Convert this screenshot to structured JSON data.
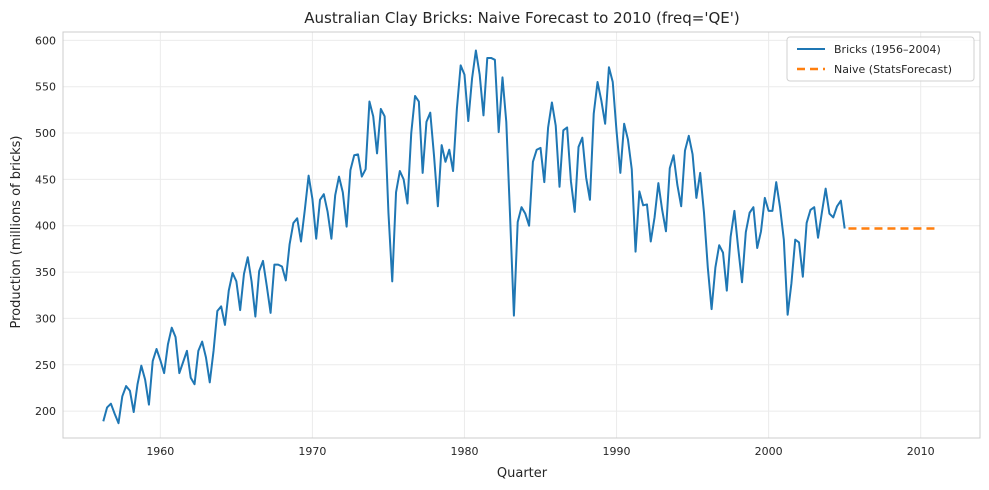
{
  "chart_data": {
    "type": "line",
    "title": "Australian Clay Bricks: Naive Forecast to 2010 (freq='QE')",
    "xlabel": "Quarter",
    "ylabel": "Production (millions of bricks)",
    "xlim": [
      1953.6,
      2013.9
    ],
    "ylim": [
      171,
      609
    ],
    "x_ticks": [
      1960,
      1970,
      1980,
      1990,
      2000,
      2010
    ],
    "y_ticks": [
      200,
      250,
      300,
      350,
      400,
      450,
      500,
      550,
      600
    ],
    "grid": true,
    "legend_position": "top-right",
    "colors": {
      "history": "#1f77b4",
      "forecast": "#ff7f0e"
    },
    "series": [
      {
        "name": "Bricks (1956–2004)",
        "style": "solid",
        "x_start": 1956.25,
        "x_step": 0.25,
        "values": [
          189,
          204,
          208,
          197,
          187,
          216,
          227,
          222,
          199,
          229,
          249,
          234,
          207,
          254,
          267,
          255,
          241,
          272,
          290,
          280,
          241,
          253,
          265,
          236,
          229,
          265,
          275,
          258,
          231,
          265,
          308,
          313,
          293,
          330,
          349,
          340,
          309,
          348,
          366,
          340,
          302,
          351,
          362,
          335,
          306,
          358,
          358,
          356,
          341,
          380,
          403,
          408,
          383,
          417,
          454,
          429,
          386,
          428,
          434,
          415,
          386,
          433,
          453,
          436,
          399,
          460,
          476,
          477,
          453,
          461,
          534,
          518,
          478,
          526,
          518,
          414,
          340,
          436,
          459,
          450,
          424,
          500,
          540,
          534,
          457,
          512,
          522,
          475,
          421,
          487,
          469,
          482,
          459,
          526,
          573,
          563,
          513,
          559,
          589,
          563,
          519,
          581,
          581,
          579,
          501,
          560,
          512,
          410,
          303,
          404,
          420,
          413,
          400,
          469,
          482,
          484,
          447,
          506,
          533,
          508,
          442,
          503,
          506,
          448,
          415,
          485,
          495,
          452,
          428,
          521,
          555,
          535,
          510,
          571,
          555,
          502,
          457,
          510,
          493,
          461,
          372,
          437,
          422,
          423,
          383,
          409,
          446,
          417,
          394,
          462,
          476,
          444,
          421,
          481,
          497,
          477,
          430,
          457,
          414,
          355,
          310,
          355,
          379,
          371,
          330,
          388,
          416,
          376,
          339,
          393,
          414,
          420,
          376,
          394,
          430,
          416,
          416,
          447,
          420,
          385,
          304,
          338,
          385,
          382,
          345,
          403,
          417,
          420,
          387,
          414,
          440,
          413,
          409,
          421,
          427,
          397
        ]
      },
      {
        "name": "Naive (StatsForecast)",
        "style": "dashed",
        "x_start": 2005.25,
        "x_step": 0.25,
        "values": [
          397,
          397,
          397,
          397,
          397,
          397,
          397,
          397,
          397,
          397,
          397,
          397,
          397,
          397,
          397,
          397,
          397,
          397,
          397,
          397,
          397,
          397,
          397,
          397
        ]
      }
    ]
  }
}
